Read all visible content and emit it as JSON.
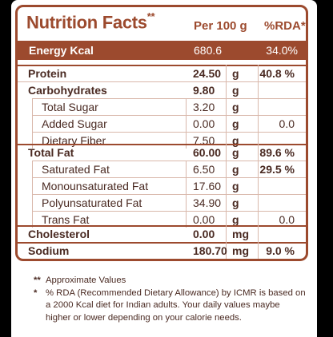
{
  "header": {
    "title": "Nutrition Facts",
    "title_mark": "**",
    "per": "Per 100 g",
    "rda": "%RDA*"
  },
  "energy": {
    "label": "Energy Kcal",
    "value": "680.6",
    "rda": "34.0%"
  },
  "rows": [
    {
      "name": "Protein",
      "value": "24.50",
      "unit": "g",
      "rda": "40.8 %"
    },
    {
      "name": "Carbohydrates",
      "value": "9.80",
      "unit": "g",
      "rda": ""
    },
    {
      "name": "Total Sugar",
      "value": "3.20",
      "unit": "g",
      "rda": ""
    },
    {
      "name": "Added Sugar",
      "value": "0.00",
      "unit": "g",
      "rda": "0.0"
    },
    {
      "name": "Dietary Fiber",
      "value": "7.50",
      "unit": "g",
      "rda": ""
    },
    {
      "name": "Total Fat",
      "value": "60.00",
      "unit": "g",
      "rda": "89.6 %"
    },
    {
      "name": "Saturated Fat",
      "value": "6.50",
      "unit": "g",
      "rda": "29.5 %"
    },
    {
      "name": "Monounsaturated Fat",
      "value": "17.60",
      "unit": "g",
      "rda": ""
    },
    {
      "name": "Polyunsaturated Fat",
      "value": "34.90",
      "unit": "g",
      "rda": ""
    },
    {
      "name": "Trans Fat",
      "value": "0.00",
      "unit": "g",
      "rda": "0.0"
    },
    {
      "name": "Cholesterol",
      "value": "0.00",
      "unit": "mg",
      "rda": ""
    },
    {
      "name": "Sodium",
      "value": "180.70",
      "unit": "mg",
      "rda": "9.0 %"
    }
  ],
  "footnotes": [
    {
      "mark": "**",
      "text": "Approximate Values"
    },
    {
      "mark": "*",
      "text": "% RDA (Recommended Dietary Allowance) by ICMR is based on a 2000 Kcal diet for Indian adults. Your daily values maybe higher or lower depending on your calorie needs."
    }
  ],
  "colors": {
    "accent": "#9c4a2e",
    "text": "#4a2a22",
    "rule": "#d9b8ab",
    "background": "#000000"
  }
}
